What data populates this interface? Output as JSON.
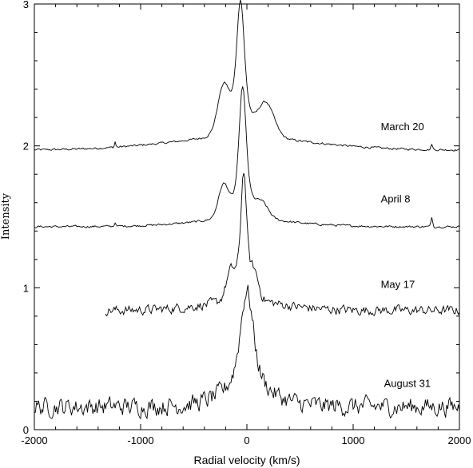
{
  "chart_data": {
    "type": "line",
    "xlabel": "Radial velocity (km/s)",
    "ylabel": "Intensity",
    "xlim": [
      -2000,
      2000
    ],
    "ylim": [
      0,
      3
    ],
    "xticks": [
      -2000,
      -1000,
      0,
      1000,
      2000
    ],
    "yticks": [
      0,
      1,
      2,
      3
    ],
    "x_tick_labels": [
      "-2000",
      "-1000",
      "0",
      "1000",
      "2000"
    ],
    "y_tick_labels": [
      "0",
      "1",
      "2",
      "3"
    ],
    "grid": false,
    "legend": "none",
    "series": [
      {
        "name": "March 20",
        "x_range": [
          -2000,
          2000
        ],
        "baseline": 1.97,
        "noise": 0.004,
        "sharp_peak": {
          "x": -60,
          "height": 0.98,
          "width": 55
        },
        "features": [
          {
            "x": -220,
            "height": 0.32,
            "width": 110
          },
          {
            "x": 180,
            "height": 0.23,
            "width": 150
          },
          {
            "x": -1240,
            "height": 0.04,
            "width": 12
          },
          {
            "x": 1740,
            "height": 0.04,
            "width": 15
          }
        ],
        "wing_height": 0.08,
        "wing_width": 700,
        "label": "March 20",
        "label_pos": [
          1260,
          2.11
        ]
      },
      {
        "name": "April 8",
        "x_range": [
          -2000,
          2000
        ],
        "baseline": 1.43,
        "noise": 0.004,
        "sharp_peak": {
          "x": -40,
          "height": 0.95,
          "width": 50
        },
        "features": [
          {
            "x": -220,
            "height": 0.22,
            "width": 95
          },
          {
            "x": 140,
            "height": 0.1,
            "width": 120
          },
          {
            "x": -1240,
            "height": 0.03,
            "width": 12
          },
          {
            "x": 1740,
            "height": 0.07,
            "width": 15
          }
        ],
        "wing_height": 0.04,
        "wing_width": 500,
        "label": "April 8",
        "label_pos": [
          1260,
          1.6
        ]
      },
      {
        "name": "May 17",
        "x_range": [
          -1330,
          2000
        ],
        "baseline": 0.84,
        "noise": 0.018,
        "sharp_peak": {
          "x": -30,
          "height": 0.93,
          "width": 40
        },
        "features": [
          {
            "x": -150,
            "height": 0.18,
            "width": 90
          },
          {
            "x": 70,
            "height": 0.16,
            "width": 80
          }
        ],
        "wing_height": 0.05,
        "wing_width": 400,
        "label": "May 17",
        "label_pos": [
          1260,
          1.0
        ]
      },
      {
        "name": "August 31",
        "x_range": [
          -2000,
          2000
        ],
        "baseline": 0.16,
        "noise": 0.035,
        "sharp_peak": {
          "x": 0,
          "height": 0.75,
          "width": 90
        },
        "features": [],
        "wing_height": 0.07,
        "wing_width": 250,
        "label": "August 31",
        "label_pos": [
          1290,
          0.3
        ]
      }
    ]
  }
}
